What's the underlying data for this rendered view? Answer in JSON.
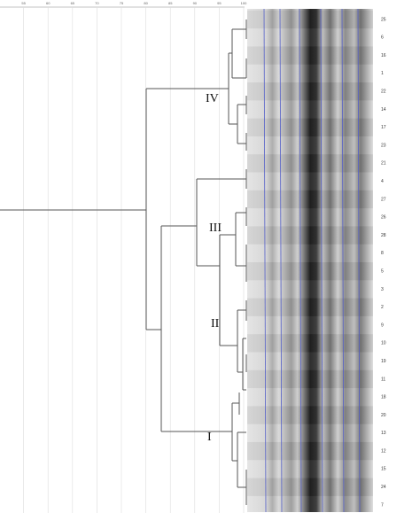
{
  "axis": {
    "ticks": [
      "55",
      "60",
      "65",
      "70",
      "75",
      "80",
      "85",
      "90",
      "95",
      "100"
    ]
  },
  "lanes": [
    "25",
    "6",
    "16",
    "1",
    "22",
    "14",
    "17",
    "23",
    "21",
    "4",
    "27",
    "26",
    "28",
    "8",
    "5",
    "3",
    "2",
    "9",
    "10",
    "19",
    "11",
    "18",
    "20",
    "13",
    "12",
    "15",
    "24",
    "7"
  ],
  "clusters": [
    {
      "label": "IV"
    },
    {
      "label": "III"
    },
    {
      "label": "II"
    },
    {
      "label": "I"
    }
  ]
}
